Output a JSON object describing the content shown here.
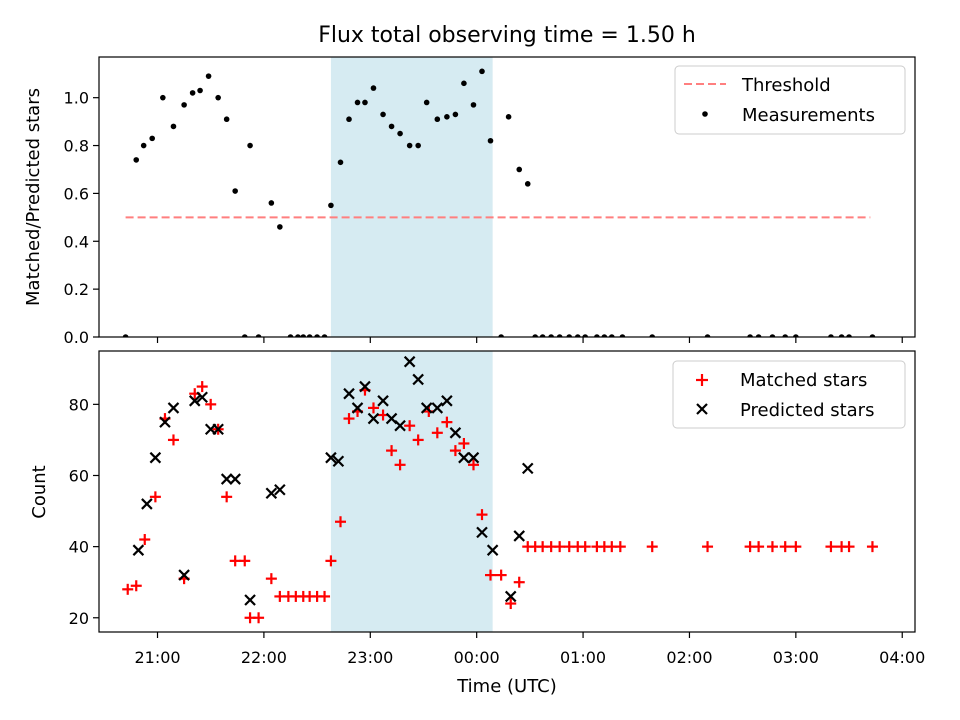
{
  "title": "Flux total observing time = 1.50 h",
  "xlabel": "Time (UTC)",
  "x_tick_labels": [
    "21:00",
    "22:00",
    "23:00",
    "00:00",
    "01:00",
    "02:00",
    "03:00",
    "04:00"
  ],
  "colors": {
    "threshold": "#ff7f7f",
    "measurement": "#000000",
    "matched": "#ff0000",
    "predicted": "#000000",
    "shaded_span": "#add8e6"
  },
  "chart_data": [
    {
      "type": "scatter",
      "ylabel": "Matched/Predicted stars",
      "xlim_hours": [
        20.45,
        28.12
      ],
      "ylim": [
        0,
        1.17
      ],
      "y_tick_labels": [
        "0.0",
        "0.2",
        "0.4",
        "0.6",
        "0.8",
        "1.0"
      ],
      "grid": false,
      "legend_position": "upper right",
      "shaded_span_hours": [
        22.63,
        24.15
      ],
      "threshold": {
        "name": "Threshold",
        "y": 0.5,
        "x_range_hours": [
          20.7,
          27.7
        ],
        "style": "dashed"
      },
      "series": [
        {
          "name": "Measurements",
          "points": [
            [
              20.7,
              0.0
            ],
            [
              20.8,
              0.74
            ],
            [
              20.87,
              0.8
            ],
            [
              20.95,
              0.83
            ],
            [
              21.05,
              1.0
            ],
            [
              21.15,
              0.88
            ],
            [
              21.25,
              0.97
            ],
            [
              21.33,
              1.02
            ],
            [
              21.4,
              1.03
            ],
            [
              21.48,
              1.09
            ],
            [
              21.57,
              1.0
            ],
            [
              21.65,
              0.91
            ],
            [
              21.73,
              0.61
            ],
            [
              21.82,
              0.0
            ],
            [
              21.87,
              0.8
            ],
            [
              21.95,
              0.0
            ],
            [
              22.07,
              0.56
            ],
            [
              22.15,
              0.46
            ],
            [
              22.25,
              0.0
            ],
            [
              22.32,
              0.0
            ],
            [
              22.37,
              0.0
            ],
            [
              22.43,
              0.0
            ],
            [
              22.5,
              0.0
            ],
            [
              22.57,
              0.0
            ],
            [
              22.63,
              0.55
            ],
            [
              22.72,
              0.73
            ],
            [
              22.8,
              0.91
            ],
            [
              22.88,
              0.98
            ],
            [
              22.95,
              0.98
            ],
            [
              23.03,
              1.04
            ],
            [
              23.12,
              0.93
            ],
            [
              23.2,
              0.88
            ],
            [
              23.28,
              0.85
            ],
            [
              23.37,
              0.8
            ],
            [
              23.45,
              0.8
            ],
            [
              23.53,
              0.98
            ],
            [
              23.63,
              0.91
            ],
            [
              23.72,
              0.92
            ],
            [
              23.8,
              0.93
            ],
            [
              23.88,
              1.06
            ],
            [
              23.97,
              0.97
            ],
            [
              24.05,
              1.11
            ],
            [
              24.13,
              0.82
            ],
            [
              24.23,
              0.0
            ],
            [
              24.3,
              0.92
            ],
            [
              24.4,
              0.7
            ],
            [
              24.48,
              0.64
            ],
            [
              24.55,
              0.0
            ],
            [
              24.62,
              0.0
            ],
            [
              24.7,
              0.0
            ],
            [
              24.78,
              0.0
            ],
            [
              24.87,
              0.0
            ],
            [
              24.95,
              0.0
            ],
            [
              25.02,
              0.0
            ],
            [
              25.13,
              0.0
            ],
            [
              25.2,
              0.0
            ],
            [
              25.27,
              0.0
            ],
            [
              25.37,
              0.0
            ],
            [
              25.65,
              0.0
            ],
            [
              26.17,
              0.0
            ],
            [
              26.57,
              0.0
            ],
            [
              26.65,
              0.0
            ],
            [
              26.78,
              0.0
            ],
            [
              26.9,
              0.0
            ],
            [
              27.0,
              0.0
            ],
            [
              27.33,
              0.0
            ],
            [
              27.43,
              0.0
            ],
            [
              27.5,
              0.0
            ],
            [
              27.72,
              0.0
            ]
          ]
        }
      ]
    },
    {
      "type": "scatter",
      "ylabel": "Count",
      "xlim_hours": [
        20.45,
        28.12
      ],
      "ylim": [
        16,
        95
      ],
      "y_tick_labels": [
        "20",
        "40",
        "60",
        "80"
      ],
      "grid": false,
      "legend_position": "upper right",
      "shaded_span_hours": [
        22.63,
        24.15
      ],
      "series": [
        {
          "name": "Matched stars",
          "marker": "plus",
          "points": [
            [
              20.72,
              28
            ],
            [
              20.8,
              29
            ],
            [
              20.88,
              42
            ],
            [
              20.98,
              54
            ],
            [
              21.07,
              76
            ],
            [
              21.15,
              70
            ],
            [
              21.25,
              31
            ],
            [
              21.35,
              83
            ],
            [
              21.42,
              85
            ],
            [
              21.5,
              80
            ],
            [
              21.57,
              73
            ],
            [
              21.65,
              54
            ],
            [
              21.73,
              36
            ],
            [
              21.82,
              36
            ],
            [
              21.87,
              20
            ],
            [
              21.95,
              20
            ],
            [
              22.07,
              31
            ],
            [
              22.15,
              26
            ],
            [
              22.23,
              26
            ],
            [
              22.3,
              26
            ],
            [
              22.37,
              26
            ],
            [
              22.43,
              26
            ],
            [
              22.5,
              26
            ],
            [
              22.57,
              26
            ],
            [
              22.63,
              36
            ],
            [
              22.72,
              47
            ],
            [
              22.8,
              76
            ],
            [
              22.88,
              78
            ],
            [
              22.95,
              84
            ],
            [
              23.03,
              79
            ],
            [
              23.12,
              77
            ],
            [
              23.2,
              67
            ],
            [
              23.28,
              63
            ],
            [
              23.37,
              74
            ],
            [
              23.45,
              70
            ],
            [
              23.55,
              78
            ],
            [
              23.63,
              72
            ],
            [
              23.72,
              75
            ],
            [
              23.8,
              67
            ],
            [
              23.88,
              69
            ],
            [
              23.97,
              63
            ],
            [
              24.05,
              49
            ],
            [
              24.13,
              32
            ],
            [
              24.23,
              32
            ],
            [
              24.32,
              24
            ],
            [
              24.4,
              30
            ],
            [
              24.48,
              40
            ],
            [
              24.55,
              40
            ],
            [
              24.62,
              40
            ],
            [
              24.7,
              40
            ],
            [
              24.78,
              40
            ],
            [
              24.87,
              40
            ],
            [
              24.95,
              40
            ],
            [
              25.02,
              40
            ],
            [
              25.13,
              40
            ],
            [
              25.2,
              40
            ],
            [
              25.27,
              40
            ],
            [
              25.35,
              40
            ],
            [
              25.65,
              40
            ],
            [
              26.17,
              40
            ],
            [
              26.57,
              40
            ],
            [
              26.65,
              40
            ],
            [
              26.78,
              40
            ],
            [
              26.9,
              40
            ],
            [
              27.0,
              40
            ],
            [
              27.33,
              40
            ],
            [
              27.43,
              40
            ],
            [
              27.5,
              40
            ],
            [
              27.72,
              40
            ]
          ]
        },
        {
          "name": "Predicted stars",
          "marker": "x",
          "points": [
            [
              20.82,
              39
            ],
            [
              20.9,
              52
            ],
            [
              20.98,
              65
            ],
            [
              21.07,
              75
            ],
            [
              21.15,
              79
            ],
            [
              21.25,
              32
            ],
            [
              21.35,
              81
            ],
            [
              21.42,
              82
            ],
            [
              21.5,
              73
            ],
            [
              21.57,
              73
            ],
            [
              21.65,
              59
            ],
            [
              21.73,
              59
            ],
            [
              21.87,
              25
            ],
            [
              22.07,
              55
            ],
            [
              22.15,
              56
            ],
            [
              22.63,
              65
            ],
            [
              22.7,
              64
            ],
            [
              22.8,
              83
            ],
            [
              22.88,
              79
            ],
            [
              22.95,
              85
            ],
            [
              23.03,
              76
            ],
            [
              23.12,
              81
            ],
            [
              23.2,
              76
            ],
            [
              23.28,
              74
            ],
            [
              23.37,
              92
            ],
            [
              23.45,
              87
            ],
            [
              23.53,
              79
            ],
            [
              23.63,
              79
            ],
            [
              23.72,
              81
            ],
            [
              23.8,
              72
            ],
            [
              23.88,
              65
            ],
            [
              23.97,
              65
            ],
            [
              24.05,
              44
            ],
            [
              24.15,
              39
            ],
            [
              24.32,
              26
            ],
            [
              24.4,
              43
            ],
            [
              24.48,
              62
            ]
          ]
        }
      ]
    }
  ]
}
